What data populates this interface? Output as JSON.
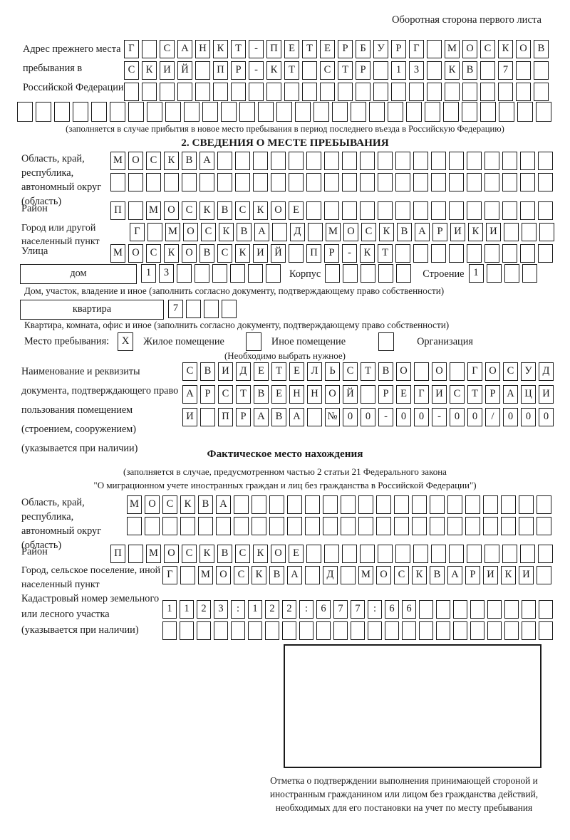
{
  "colors": {
    "ink": "#1a1a1a",
    "paper": "#ffffff"
  },
  "header_note": "Оборотная сторона первого листа",
  "s1": {
    "label": "Адрес прежнего места пребывания в Российской Федерации",
    "row1": {
      "text": "Г САНКТ-ПЕТЕРБУРГ МОСКОВ",
      "len": 24
    },
    "row2": {
      "text": "СКИЙ ПР-КТ СТР 13 КВ 7",
      "len": 24
    },
    "row3": {
      "text": "",
      "len": 24
    },
    "row4": {
      "text": "",
      "len": 29
    },
    "caption": "(заполняется в случае прибытия в новое место пребывания в период последнего въезда в Российскую Федерацию)"
  },
  "s2": {
    "title": "2. СВЕДЕНИЯ О МЕСТЕ ПРЕБЫВАНИЯ",
    "oblast_label": "Область, край, республика, автономный округ (область)",
    "oblast_row1": {
      "text": "МОСКВА",
      "len": 25
    },
    "oblast_row2": {
      "text": "",
      "len": 25
    },
    "raion_label": "Район",
    "raion_row": {
      "text": "П МОСКВСКОЕ",
      "len": 25
    },
    "gorod_label": "Город или другой населенный пункт",
    "gorod_row": {
      "text": "Г МОСКВА Д МОСКВАРИКИ",
      "len": 24
    },
    "ulitsa_label": "Улица",
    "ulitsa_row": {
      "text": "МОСКОВСКИЙ ПР-КТ",
      "len": 25
    },
    "dom_label": "дом",
    "dom_row": {
      "text": "13",
      "len": 8
    },
    "korpus_label": "Корпус",
    "korpus_row": {
      "text": "",
      "len": 5
    },
    "stroenie_label": "Строение",
    "stroenie_row": {
      "text": "1",
      "len": 4
    },
    "dom_caption": "Дом, участок, владение и иное (заполнить согласно документу, подтверждающему право собственности)",
    "kvartira_label": "квартира",
    "kvartira_row": {
      "text": "7",
      "len": 4
    },
    "kvartira_caption": "Квартира, комната, офис и иное (заполнить согласно документу, подтверждающему право собственности)",
    "mesto_label": "Место пребывания:",
    "mesto_options": [
      {
        "label": "Жилое помещение",
        "mark": "X"
      },
      {
        "label": "Иное помещение",
        "mark": ""
      },
      {
        "label": "Организация",
        "mark": ""
      }
    ],
    "mesto_caption": "(Необходимо выбрать нужное)",
    "doc_label": "Наименование и реквизиты документа, подтверждающего право пользования помещением (строением, сооружением) (указывается при наличии)",
    "doc_row1": {
      "text": "СВИДЕТЕЛЬСТВО О ГОСУД",
      "len": 21
    },
    "doc_row2": {
      "text": "АРСТВЕННОЙ РЕГИСТРАЦИ",
      "len": 21
    },
    "doc_row3": {
      "text": "И ПРАВА №00-00-00/000",
      "len": 21
    }
  },
  "fact": {
    "title": "Фактическое место нахождения",
    "caption_line1": "(заполняется в случае, предусмотренном частью 2 статьи 21 Федерального закона",
    "caption_line2": "\"О миграционном учете иностранных граждан и лиц без гражданства в Российской Федерации\")",
    "oblast_label": "Область, край, республика, автономный округ (область)",
    "oblast_row1": {
      "text": "МОСКВА",
      "len": 24
    },
    "oblast_row2": {
      "text": "",
      "len": 24
    },
    "raion_label": "Район",
    "raion_row": {
      "text": "П МОСКВСКОЕ",
      "len": 25
    },
    "gorod_label": "Город, сельское поселение, иной населенный пункт",
    "gorod_row": {
      "text": "Г МОСКВА Д МОСКВАРИКИ",
      "len": 22
    },
    "kadastr_label": "Кадастровый номер земельного или лесного участка (указывается при наличии)",
    "kadastr_row1": {
      "text": "1123:122:677:66",
      "len": 23
    },
    "kadastr_row2": {
      "text": "",
      "len": 23
    },
    "stamp_caption": "Отметка о подтверждении выполнения принимающей стороной и иностранным гражданином или лицом без гражданства действий, необходимых для его постановки на учет по месту пребывания"
  }
}
